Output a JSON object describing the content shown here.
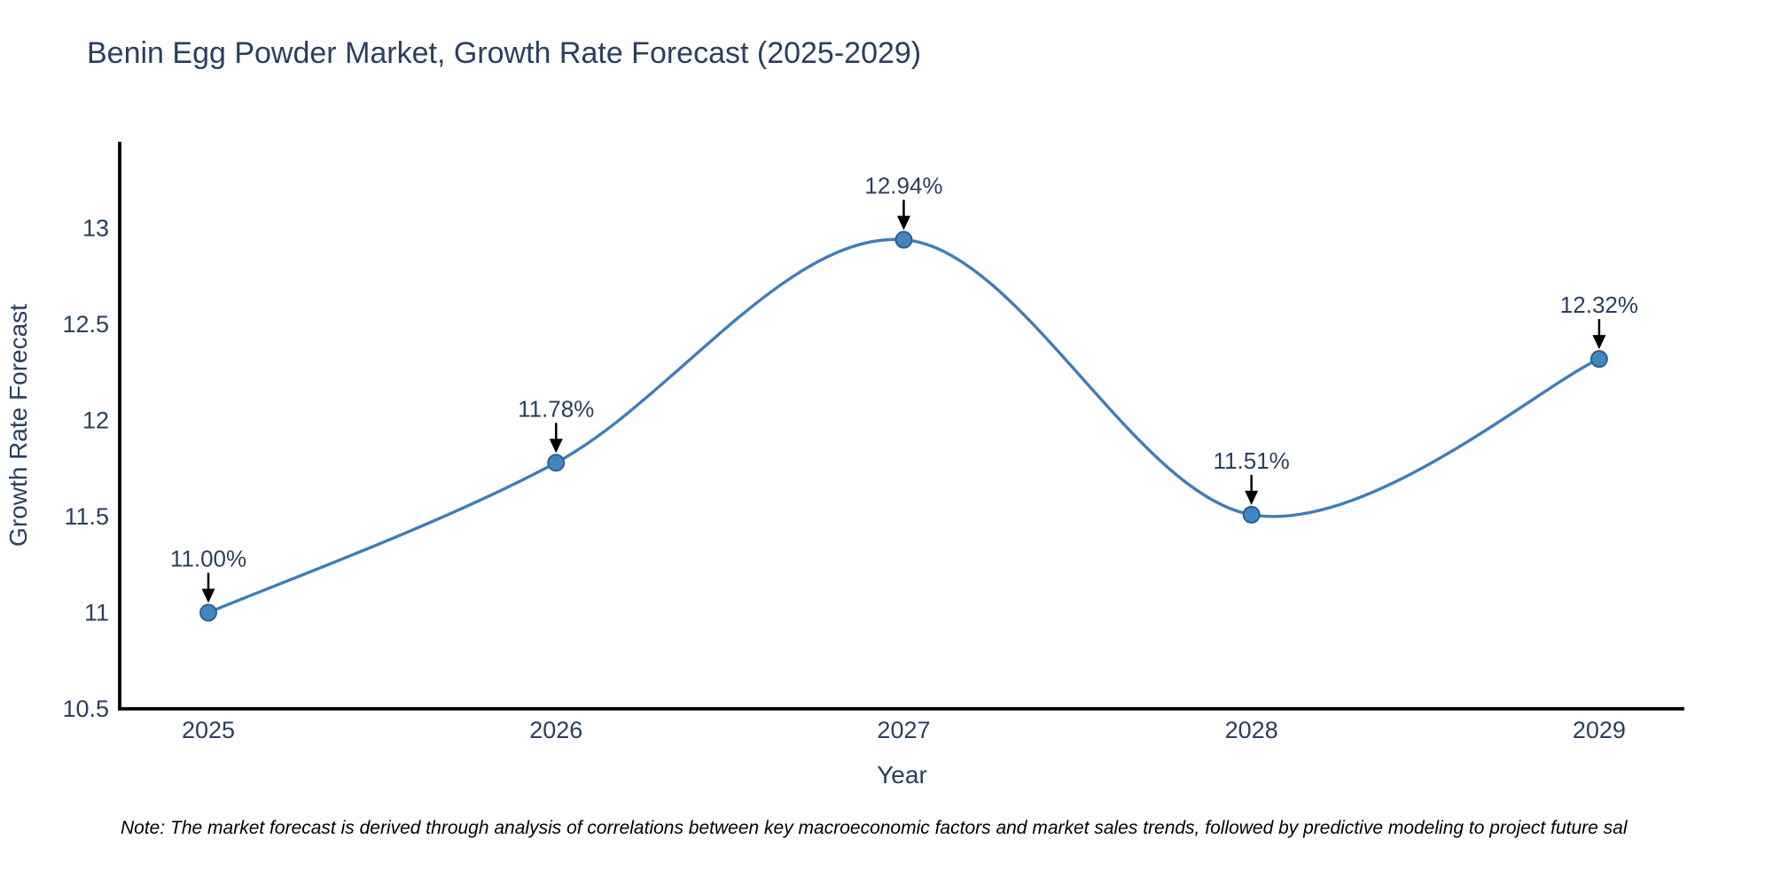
{
  "page": {
    "title": "Benin Egg Powder Market, Growth Rate Forecast (2025-2029)",
    "note": "Note: The market forecast is derived through analysis of correlations between key macroeconomic factors and market sales trends, followed by predictive modeling to project future sal"
  },
  "chart_data": {
    "type": "line",
    "title": "Benin Egg Powder Market, Growth Rate Forecast (2025-2029)",
    "xlabel": "Year",
    "ylabel": "Growth Rate Forecast",
    "x": [
      2025,
      2026,
      2027,
      2028,
      2029
    ],
    "x_tick_labels": [
      "2025",
      "2026",
      "2027",
      "2028",
      "2029"
    ],
    "series": [
      {
        "name": "Growth Rate Forecast",
        "values": [
          11.0,
          11.78,
          12.94,
          11.51,
          12.32
        ],
        "point_labels": [
          "11.00%",
          "11.78%",
          "12.94%",
          "11.51%",
          "12.32%"
        ]
      }
    ],
    "y_ticks": [
      10.5,
      11,
      11.5,
      12,
      12.5,
      13
    ],
    "xlim": [
      2024.745,
      2029.245
    ],
    "ylim": [
      10.5,
      13.45
    ],
    "line_shape": "spline",
    "grid": false,
    "legend_position": "none",
    "colors": {
      "line": "#3f7db8",
      "marker_fill": "#4286c0",
      "marker_edge": "#2c618f",
      "axis": "#000000",
      "text": "#2a3f5f",
      "annotation_arrow": "#000000",
      "background": "#ffffff"
    }
  }
}
